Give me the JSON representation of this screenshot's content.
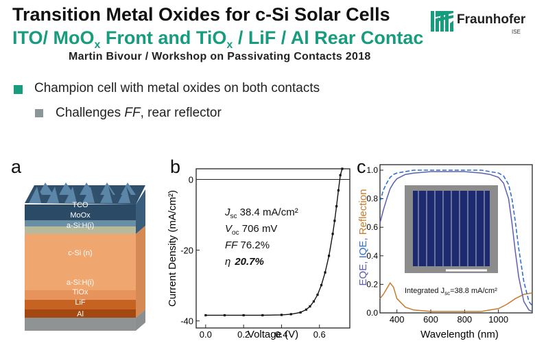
{
  "header": {
    "title_line1": "Transition Metal Oxides for c-Si Solar Cells",
    "title_line2_a": "ITO/ MoO",
    "title_line2_sub1": "x",
    "title_line2_b": " Front and TiO",
    "title_line2_sub2": "x",
    "title_line2_c": " / LiF / Al  Rear Contac",
    "author": "Martin Bivour / Workshop on Passivating Contacts 2018",
    "logo_name": "Fraunhofer",
    "logo_sub": "ISE"
  },
  "bullets": [
    {
      "text": "Champion cell with metal oxides on both contacts"
    },
    {
      "prefix": "Challenges ",
      "italic": "FF",
      "suffix": ", rear reflector"
    }
  ],
  "panel_a": {
    "label": "a",
    "layers": [
      "TCO",
      "MoOx",
      "a-Si:H(i)",
      "c-Si (n)",
      "a-Si:H(i)",
      "TiOx",
      "LiF",
      "Al"
    ]
  },
  "panel_b": {
    "label": "b",
    "xlabel": "Voltage (V)",
    "ylabel": "Current Density (mA/cm²)",
    "jsc_label": "J",
    "jsc_sub": "sc",
    "jsc_value": " 38.4 mA/cm²",
    "voc_label": "V",
    "voc_sub": "oc",
    "voc_value": " 706 mV",
    "ff_label": "FF",
    "ff_value": " 76.2%",
    "eta_label": "η",
    "eta_value": "20.7%"
  },
  "panel_c": {
    "label": "c",
    "xlabel": "Wavelength (nm)",
    "ylabel_eqe": "EQE",
    "ylabel_sep": ", ",
    "ylabel_iqe": "IQE",
    "ylabel_refl": "Reflection",
    "integrated_a": "Integrated  J",
    "integrated_sub": "sc",
    "integrated_b": "=38.8 mA/cm²"
  },
  "colors": {
    "accent": "#179c7d",
    "bullet2": "#8b9699",
    "eqe": "#5b5fb0",
    "iqe": "#2f6fd0",
    "reflection": "#c77a2c"
  },
  "chart_data": [
    {
      "type": "line",
      "title": "",
      "xlabel": "Voltage (V)",
      "ylabel": "Current Density (mA/cm²)",
      "xlim": [
        -0.05,
        0.76
      ],
      "ylim": [
        -42,
        3
      ],
      "xticks": [
        "0.0",
        "0.2",
        "0.4",
        "0.6"
      ],
      "yticks": [
        "0",
        "-20",
        "-40"
      ],
      "series": [
        {
          "x": [
            0.0,
            0.1,
            0.2,
            0.3,
            0.4,
            0.45,
            0.5,
            0.53,
            0.55,
            0.57,
            0.59,
            0.61,
            0.63,
            0.65,
            0.67,
            0.68,
            0.69,
            0.7,
            0.71,
            0.72
          ],
          "values": [
            -38.4,
            -38.4,
            -38.4,
            -38.4,
            -38.3,
            -38.1,
            -37.6,
            -36.8,
            -35.9,
            -34.5,
            -32.6,
            -29.9,
            -26.3,
            -21.6,
            -15.4,
            -11.7,
            -7.6,
            -3.1,
            1.2,
            3.0
          ]
        }
      ]
    },
    {
      "type": "line",
      "title": "",
      "xlabel": "Wavelength (nm)",
      "ylabel": "EQE, IQE, Reflection",
      "xlim": [
        300,
        1200
      ],
      "ylim": [
        0,
        1.0
      ],
      "xticks": [
        "400",
        "600",
        "800",
        "1000"
      ],
      "yticks": [
        "0.0",
        "0.2",
        "0.4",
        "0.6",
        "0.8",
        "1.0"
      ],
      "series": [
        {
          "name": "EQE",
          "x": [
            300,
            320,
            340,
            360,
            380,
            400,
            450,
            500,
            600,
            700,
            800,
            900,
            950,
            1000,
            1030,
            1060,
            1080,
            1100,
            1120,
            1150,
            1180,
            1200
          ],
          "values": [
            0.63,
            0.72,
            0.8,
            0.87,
            0.91,
            0.94,
            0.97,
            0.98,
            0.99,
            0.99,
            0.99,
            0.98,
            0.97,
            0.95,
            0.91,
            0.8,
            0.63,
            0.43,
            0.25,
            0.08,
            0.02,
            0.01
          ]
        },
        {
          "name": "IQE",
          "x": [
            300,
            320,
            340,
            360,
            380,
            400,
            450,
            500,
            600,
            700,
            800,
            900,
            950,
            1000,
            1030,
            1060,
            1080,
            1100,
            1120,
            1150,
            1180,
            1200
          ],
          "values": [
            0.78,
            0.86,
            0.91,
            0.95,
            0.97,
            0.98,
            0.99,
            1.0,
            1.0,
            1.0,
            1.0,
            1.0,
            0.99,
            0.98,
            0.96,
            0.9,
            0.8,
            0.64,
            0.45,
            0.22,
            0.08,
            0.05
          ]
        },
        {
          "name": "Reflection",
          "x": [
            300,
            320,
            340,
            360,
            380,
            400,
            450,
            500,
            600,
            700,
            800,
            900,
            950,
            1000,
            1050,
            1100,
            1150,
            1200
          ],
          "values": [
            0.1,
            0.13,
            0.17,
            0.21,
            0.18,
            0.1,
            0.04,
            0.02,
            0.01,
            0.01,
            0.01,
            0.01,
            0.02,
            0.03,
            0.06,
            0.1,
            0.13,
            0.14
          ]
        }
      ]
    }
  ]
}
